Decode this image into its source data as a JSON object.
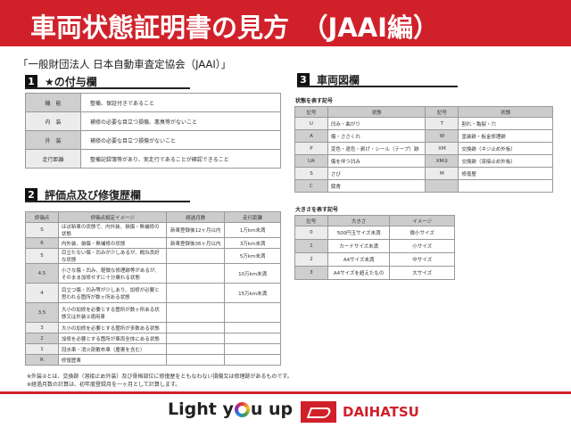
{
  "title": "車両状態証明書の見方　（JAAI編）",
  "subtitle": "「一般財団法人 日本自動車査定協会（JAAI）」",
  "section1": {
    "num": "1",
    "title": "★の付与欄",
    "rows": [
      {
        "k": "機　能",
        "v": "整備、保証付きであること"
      },
      {
        "k": "内　装",
        "v": "補修の必要な目立つ損傷、悪臭等がないこと"
      },
      {
        "k": "外　装",
        "v": "補修の必要な目立つ損傷がないこと"
      },
      {
        "k": "走行距離",
        "v": "整備記録簿等があり、実走行であることが確認できること"
      }
    ]
  },
  "section2": {
    "num": "2",
    "title": "評価点及び修復歴欄",
    "headers": [
      "評価点",
      "評価点設定イメージ",
      "経過月数",
      "走行距離"
    ],
    "rows": [
      [
        "S",
        "ほぼ新車の状態で、内外装、損傷・無補修の状態",
        "新車登録後12ヶ月以内",
        "1万km未満"
      ],
      [
        "6",
        "内外装、損傷・無補修の状態",
        "新車登録後36ヶ月以内",
        "3万km未満"
      ],
      [
        "5",
        "目立たない傷・凹みが少しあるが、概ね良好な状態",
        "",
        "5万km未満"
      ],
      [
        "4.5",
        "小さな傷・凹み、軽微な修理跡等があるが、そのまま加修せずに十分乗れる状態",
        "",
        "10万km未満"
      ],
      [
        "4",
        "目立つ傷・凹み等が少しあり、加修が必要と思われる箇所が数ヶ所ある状態",
        "",
        "15万km未満"
      ],
      [
        "3.5",
        "大小の加修を必要とする箇所が数ヶ所ある状態又は外装②適用車",
        "",
        ""
      ],
      [
        "3",
        "大小の加修を必要とする箇所が多数ある状態",
        "",
        ""
      ],
      [
        "2",
        "加修を必要とする箇所が車両全体にある状態",
        "",
        ""
      ],
      [
        "1",
        "冠水車・消火剤散布車（塵害を含む）",
        "",
        ""
      ],
      [
        "R",
        "修復歴車",
        "",
        ""
      ]
    ]
  },
  "notes": [
    "※外装②とは、交換跡（溶接止め外装）及び骨格部位に修復歴をともなわない損傷又は修理跡があるものです。",
    "※経過月数の計算は、初年度登録月を一ヶ月として計算します。"
  ],
  "section3": {
    "num": "3",
    "title": "車両図欄",
    "state_label": "状態を表す記号",
    "state_headers": [
      "記号",
      "状態",
      "記号",
      "状態"
    ],
    "state_rows": [
      [
        "U",
        "凹み・曲がり",
        "T",
        "割れ・亀裂・穴"
      ],
      [
        "A",
        "傷・ささくれ",
        "W",
        "塗装跡・板金修理跡"
      ],
      [
        "P",
        "変色・退色・剥げ・シール（テープ）跡",
        "XM",
        "交換跡（ネジ止め外板）"
      ],
      [
        "UA",
        "傷を伴う凹み",
        "XM②",
        "交換跡（溶接止め外板）"
      ],
      [
        "S",
        "さび",
        "M",
        "修復歴"
      ],
      [
        "C",
        "腐食",
        "",
        ""
      ]
    ],
    "size_label": "大きさを表す記号",
    "size_headers": [
      "記号",
      "大きさ",
      "イメージ"
    ],
    "size_rows": [
      [
        "0",
        "500円玉サイズ未満",
        "微小サイズ"
      ],
      [
        "1",
        "カードサイズ未満",
        "小サイズ"
      ],
      [
        "2",
        "A4サイズ未満",
        "中サイズ"
      ],
      [
        "3",
        "A4サイズを超えたもの",
        "大サイズ"
      ]
    ]
  },
  "footer": {
    "slogan_a": "Light y",
    "slogan_b": "u up",
    "brand": "DAIHATSU"
  },
  "colors": {
    "accent": "#d0212a"
  }
}
